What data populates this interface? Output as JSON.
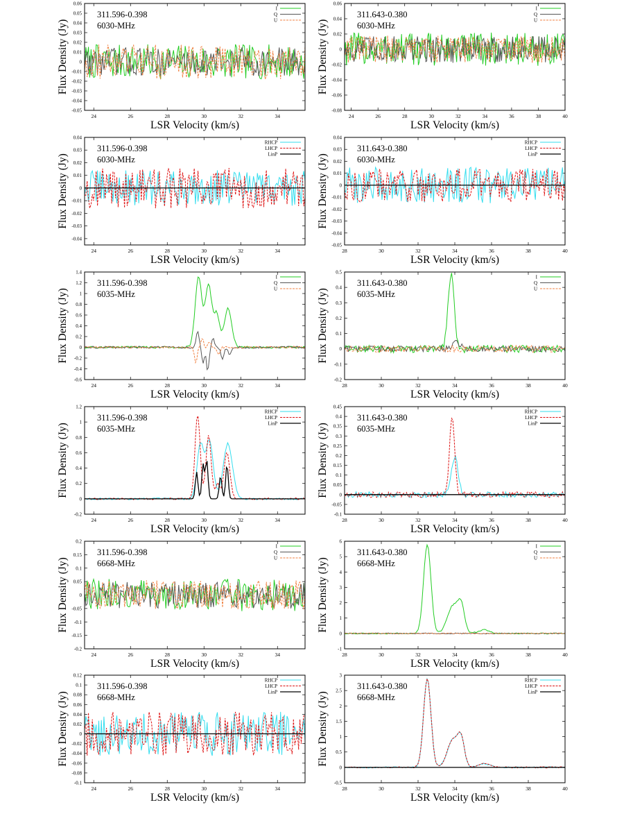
{
  "figure": {
    "ylabel": "Flux Density (Jy)",
    "xlabel": "LSR Velocity (km/s)"
  },
  "colors": {
    "I": "#22cc22",
    "Q": "#555555",
    "U": "#f08040",
    "RHCP": "#33ddee",
    "LHCP": "#dd1111",
    "LinP": "#000000"
  },
  "chart_data": [
    {
      "type": "line",
      "source": "311.596-0.398",
      "band": "6030-MHz",
      "mode": "stokes",
      "xlabel": "LSR Velocity (km/s)",
      "ylabel": "Flux Density (Jy)",
      "xlim": [
        23.5,
        35.5
      ],
      "xticks": [
        24,
        26,
        28,
        30,
        32,
        34
      ],
      "ylim": [
        -0.05,
        0.06
      ],
      "yticks": [
        -0.05,
        -0.04,
        -0.03,
        -0.02,
        -0.01,
        0,
        0.01,
        0.02,
        0.03,
        0.04,
        0.05,
        0.06
      ],
      "series": [
        {
          "name": "I",
          "noise": 0.018
        },
        {
          "name": "Q",
          "noise": 0.015
        },
        {
          "name": "U",
          "noise": 0.018
        }
      ]
    },
    {
      "type": "line",
      "source": "311.643-0.380",
      "band": "6030-MHz",
      "mode": "stokes",
      "xlabel": "LSR Velocity (km/s)",
      "ylabel": "Flux Density (Jy)",
      "xlim": [
        23.5,
        40
      ],
      "xticks": [
        24,
        26,
        28,
        30,
        32,
        34,
        36,
        38,
        40
      ],
      "ylim": [
        -0.08,
        0.06
      ],
      "yticks": [
        -0.08,
        -0.06,
        -0.04,
        -0.02,
        0,
        0.02,
        0.04,
        0.06
      ],
      "series": [
        {
          "name": "I",
          "noise": 0.022
        },
        {
          "name": "Q",
          "noise": 0.018
        },
        {
          "name": "U",
          "noise": 0.018
        }
      ]
    },
    {
      "type": "line",
      "source": "311.596-0.398",
      "band": "6030-MHz",
      "mode": "circ",
      "xlabel": "LSR Velocity (km/s)",
      "ylabel": "Flux Density (Jy)",
      "xlim": [
        23.5,
        35.5
      ],
      "xticks": [
        24,
        26,
        28,
        30,
        32,
        34
      ],
      "ylim": [
        -0.045,
        0.04
      ],
      "yticks": [
        -0.04,
        -0.03,
        -0.02,
        -0.01,
        0,
        0.01,
        0.02,
        0.03,
        0.04
      ],
      "series": [
        {
          "name": "RHCP",
          "noise": 0.014
        },
        {
          "name": "LHCP",
          "noise": 0.016
        },
        {
          "name": "LinP",
          "noise": 0
        }
      ]
    },
    {
      "type": "line",
      "source": "311.643-0.380",
      "band": "6030-MHz",
      "mode": "circ",
      "xlabel": "LSR Velocity (km/s)",
      "ylabel": "Flux Density (Jy)",
      "xlim": [
        28,
        40
      ],
      "xticks": [
        28,
        30,
        32,
        34,
        36,
        38,
        40
      ],
      "ylim": [
        -0.05,
        0.04
      ],
      "yticks": [
        -0.05,
        -0.04,
        -0.03,
        -0.02,
        -0.01,
        0,
        0.01,
        0.02,
        0.03,
        0.04
      ],
      "series": [
        {
          "name": "RHCP",
          "noise": 0.015
        },
        {
          "name": "LHCP",
          "noise": 0.014
        },
        {
          "name": "LinP",
          "noise": 0
        }
      ]
    },
    {
      "type": "line",
      "source": "311.596-0.398",
      "band": "6035-MHz",
      "mode": "stokes",
      "xlabel": "LSR Velocity (km/s)",
      "ylabel": "Flux Density (Jy)",
      "xlim": [
        23.5,
        35.5
      ],
      "xticks": [
        24,
        26,
        28,
        30,
        32,
        34
      ],
      "ylim": [
        -0.6,
        1.4
      ],
      "yticks": [
        -0.6,
        -0.4,
        -0.2,
        0,
        0.2,
        0.4,
        0.6,
        0.8,
        1,
        1.2,
        1.4
      ],
      "series": [
        {
          "name": "I",
          "noise": 0.02,
          "peaks": [
            {
              "c": 29.7,
              "a": 1.3,
              "w": 0.18
            },
            {
              "c": 30.25,
              "a": 1.15,
              "w": 0.18
            },
            {
              "c": 30.7,
              "a": 0.6,
              "w": 0.15
            },
            {
              "c": 31.3,
              "a": 0.72,
              "w": 0.2
            }
          ]
        },
        {
          "name": "Q",
          "noise": 0.02,
          "peaks": [
            {
              "c": 29.65,
              "a": 0.3,
              "w": 0.08
            },
            {
              "c": 29.95,
              "a": -0.3,
              "w": 0.07
            },
            {
              "c": 30.2,
              "a": -0.45,
              "w": 0.07
            },
            {
              "c": 30.5,
              "a": 0.15,
              "w": 0.08
            },
            {
              "c": 31.0,
              "a": -0.22,
              "w": 0.08
            },
            {
              "c": 31.4,
              "a": -0.15,
              "w": 0.08
            }
          ]
        },
        {
          "name": "U",
          "noise": 0.02,
          "peaks": [
            {
              "c": 29.55,
              "a": -0.3,
              "w": 0.07
            },
            {
              "c": 29.9,
              "a": 0.18,
              "w": 0.07
            },
            {
              "c": 30.3,
              "a": 0.1,
              "w": 0.08
            },
            {
              "c": 30.8,
              "a": -0.15,
              "w": 0.08
            }
          ]
        }
      ]
    },
    {
      "type": "line",
      "source": "311.643-0.380",
      "band": "6035-MHz",
      "mode": "stokes",
      "xlabel": "LSR Velocity (km/s)",
      "ylabel": "Flux Density (Jy)",
      "xlim": [
        28,
        40
      ],
      "xticks": [
        28,
        30,
        32,
        34,
        36,
        38,
        40
      ],
      "ylim": [
        -0.2,
        0.5
      ],
      "yticks": [
        -0.2,
        -0.1,
        0,
        0.1,
        0.2,
        0.3,
        0.4,
        0.5
      ],
      "series": [
        {
          "name": "I",
          "noise": 0.025,
          "peaks": [
            {
              "c": 33.8,
              "a": 0.48,
              "w": 0.17
            }
          ]
        },
        {
          "name": "Q",
          "noise": 0.02,
          "peaks": [
            {
              "c": 34.1,
              "a": 0.04,
              "w": 0.2
            }
          ]
        },
        {
          "name": "U",
          "noise": 0.022,
          "peaks": []
        }
      ]
    },
    {
      "type": "line",
      "source": "311.596-0.398",
      "band": "6035-MHz",
      "mode": "circ",
      "xlabel": "LSR Velocity (km/s)",
      "ylabel": "Flux Density (Jy)",
      "xlim": [
        23.5,
        35.5
      ],
      "xticks": [
        24,
        26,
        28,
        30,
        32,
        34
      ],
      "ylim": [
        -0.2,
        1.2
      ],
      "yticks": [
        -0.2,
        0,
        0.2,
        0.4,
        0.6,
        0.8,
        1,
        1.2
      ],
      "series": [
        {
          "name": "RHCP",
          "noise": 0.012,
          "peaks": [
            {
              "c": 29.8,
              "a": 0.7,
              "w": 0.18
            },
            {
              "c": 30.3,
              "a": 0.75,
              "w": 0.2
            },
            {
              "c": 31.3,
              "a": 0.72,
              "w": 0.25
            }
          ]
        },
        {
          "name": "LHCP",
          "noise": 0.012,
          "peaks": [
            {
              "c": 29.65,
              "a": 1.1,
              "w": 0.14
            },
            {
              "c": 30.25,
              "a": 0.82,
              "w": 0.14
            },
            {
              "c": 30.75,
              "a": 0.2,
              "w": 0.12
            },
            {
              "c": 31.25,
              "a": 0.6,
              "w": 0.16
            }
          ]
        },
        {
          "name": "LinP",
          "noise": 0,
          "peaks": [
            {
              "c": 29.6,
              "a": 0.35,
              "w": 0.07
            },
            {
              "c": 29.95,
              "a": 0.45,
              "w": 0.07
            },
            {
              "c": 30.15,
              "a": 0.5,
              "w": 0.07
            },
            {
              "c": 30.9,
              "a": 0.3,
              "w": 0.07
            },
            {
              "c": 31.25,
              "a": 0.45,
              "w": 0.07
            }
          ]
        }
      ]
    },
    {
      "type": "line",
      "source": "311.643-0.380",
      "band": "6035-MHz",
      "mode": "circ",
      "xlabel": "LSR Velocity (km/s)",
      "ylabel": "Flux Density (Jy)",
      "xlim": [
        28,
        40
      ],
      "xticks": [
        28,
        30,
        32,
        34,
        36,
        38,
        40
      ],
      "ylim": [
        -0.1,
        0.45
      ],
      "yticks": [
        -0.1,
        -0.05,
        0,
        0.05,
        0.1,
        0.15,
        0.2,
        0.25,
        0.3,
        0.35,
        0.4,
        0.45
      ],
      "series": [
        {
          "name": "RHCP",
          "noise": 0.015,
          "peaks": [
            {
              "c": 34.0,
              "a": 0.19,
              "w": 0.18
            }
          ]
        },
        {
          "name": "LHCP",
          "noise": 0.015,
          "peaks": [
            {
              "c": 33.85,
              "a": 0.4,
              "w": 0.14
            }
          ]
        },
        {
          "name": "LinP",
          "noise": 0,
          "peaks": []
        }
      ]
    },
    {
      "type": "line",
      "source": "311.596-0.398",
      "band": "6668-MHz",
      "mode": "stokes",
      "xlabel": "LSR Velocity (km/s)",
      "ylabel": "Flux Density (Jy)",
      "xlim": [
        23.5,
        35.5
      ],
      "xticks": [
        24,
        26,
        28,
        30,
        32,
        34
      ],
      "ylim": [
        -0.2,
        0.2
      ],
      "yticks": [
        -0.2,
        -0.15,
        -0.1,
        -0.05,
        0,
        0.05,
        0.1,
        0.15,
        0.2
      ],
      "series": [
        {
          "name": "I",
          "noise": 0.06
        },
        {
          "name": "Q",
          "noise": 0.05
        },
        {
          "name": "U",
          "noise": 0.055
        }
      ]
    },
    {
      "type": "line",
      "source": "311.643-0.380",
      "band": "6668-MHz",
      "mode": "stokes",
      "xlabel": "LSR Velocity (km/s)",
      "ylabel": "Flux Density (Jy)",
      "xlim": [
        28,
        40
      ],
      "xticks": [
        28,
        30,
        32,
        34,
        36,
        38,
        40
      ],
      "ylim": [
        -1,
        6
      ],
      "yticks": [
        -1,
        0,
        1,
        2,
        3,
        4,
        5,
        6
      ],
      "series": [
        {
          "name": "I",
          "noise": 0.04,
          "peaks": [
            {
              "c": 32.5,
              "a": 5.8,
              "w": 0.2
            },
            {
              "c": 33.9,
              "a": 1.8,
              "w": 0.3
            },
            {
              "c": 34.35,
              "a": 1.6,
              "w": 0.18
            },
            {
              "c": 35.6,
              "a": 0.25,
              "w": 0.3
            }
          ]
        },
        {
          "name": "Q",
          "noise": 0.03,
          "peaks": []
        },
        {
          "name": "U",
          "noise": 0.03,
          "peaks": []
        }
      ]
    },
    {
      "type": "line",
      "source": "311.596-0.398",
      "band": "6668-MHz",
      "mode": "circ",
      "xlabel": "LSR Velocity (km/s)",
      "ylabel": "Flux Density (Jy)",
      "xlim": [
        23.5,
        35.5
      ],
      "xticks": [
        24,
        26,
        28,
        30,
        32,
        34
      ],
      "ylim": [
        -0.1,
        0.12
      ],
      "yticks": [
        -0.1,
        -0.08,
        -0.06,
        -0.04,
        -0.02,
        0,
        0.02,
        0.04,
        0.06,
        0.08,
        0.1,
        0.12
      ],
      "series": [
        {
          "name": "RHCP",
          "noise": 0.045
        },
        {
          "name": "LHCP",
          "noise": 0.045
        },
        {
          "name": "LinP",
          "noise": 0
        }
      ]
    },
    {
      "type": "line",
      "source": "311.643-0.380",
      "band": "6668-MHz",
      "mode": "circ",
      "xlabel": "LSR Velocity (km/s)",
      "ylabel": "Flux Density (Jy)",
      "xlim": [
        28,
        40
      ],
      "xticks": [
        28,
        30,
        32,
        34,
        36,
        38,
        40
      ],
      "ylim": [
        -0.5,
        3
      ],
      "yticks": [
        -0.5,
        0,
        0.5,
        1,
        1.5,
        2,
        2.5,
        3
      ],
      "series": [
        {
          "name": "RHCP",
          "noise": 0.02,
          "peaks": [
            {
              "c": 32.5,
              "a": 2.9,
              "w": 0.2
            },
            {
              "c": 33.9,
              "a": 0.9,
              "w": 0.3
            },
            {
              "c": 34.35,
              "a": 0.8,
              "w": 0.18
            },
            {
              "c": 35.6,
              "a": 0.12,
              "w": 0.3
            }
          ]
        },
        {
          "name": "LHCP",
          "noise": 0.02,
          "peaks": [
            {
              "c": 32.5,
              "a": 2.9,
              "w": 0.2
            },
            {
              "c": 33.9,
              "a": 0.9,
              "w": 0.3
            },
            {
              "c": 34.35,
              "a": 0.82,
              "w": 0.18
            },
            {
              "c": 35.6,
              "a": 0.12,
              "w": 0.3
            }
          ]
        },
        {
          "name": "LinP",
          "noise": 0,
          "peaks": []
        }
      ]
    }
  ]
}
